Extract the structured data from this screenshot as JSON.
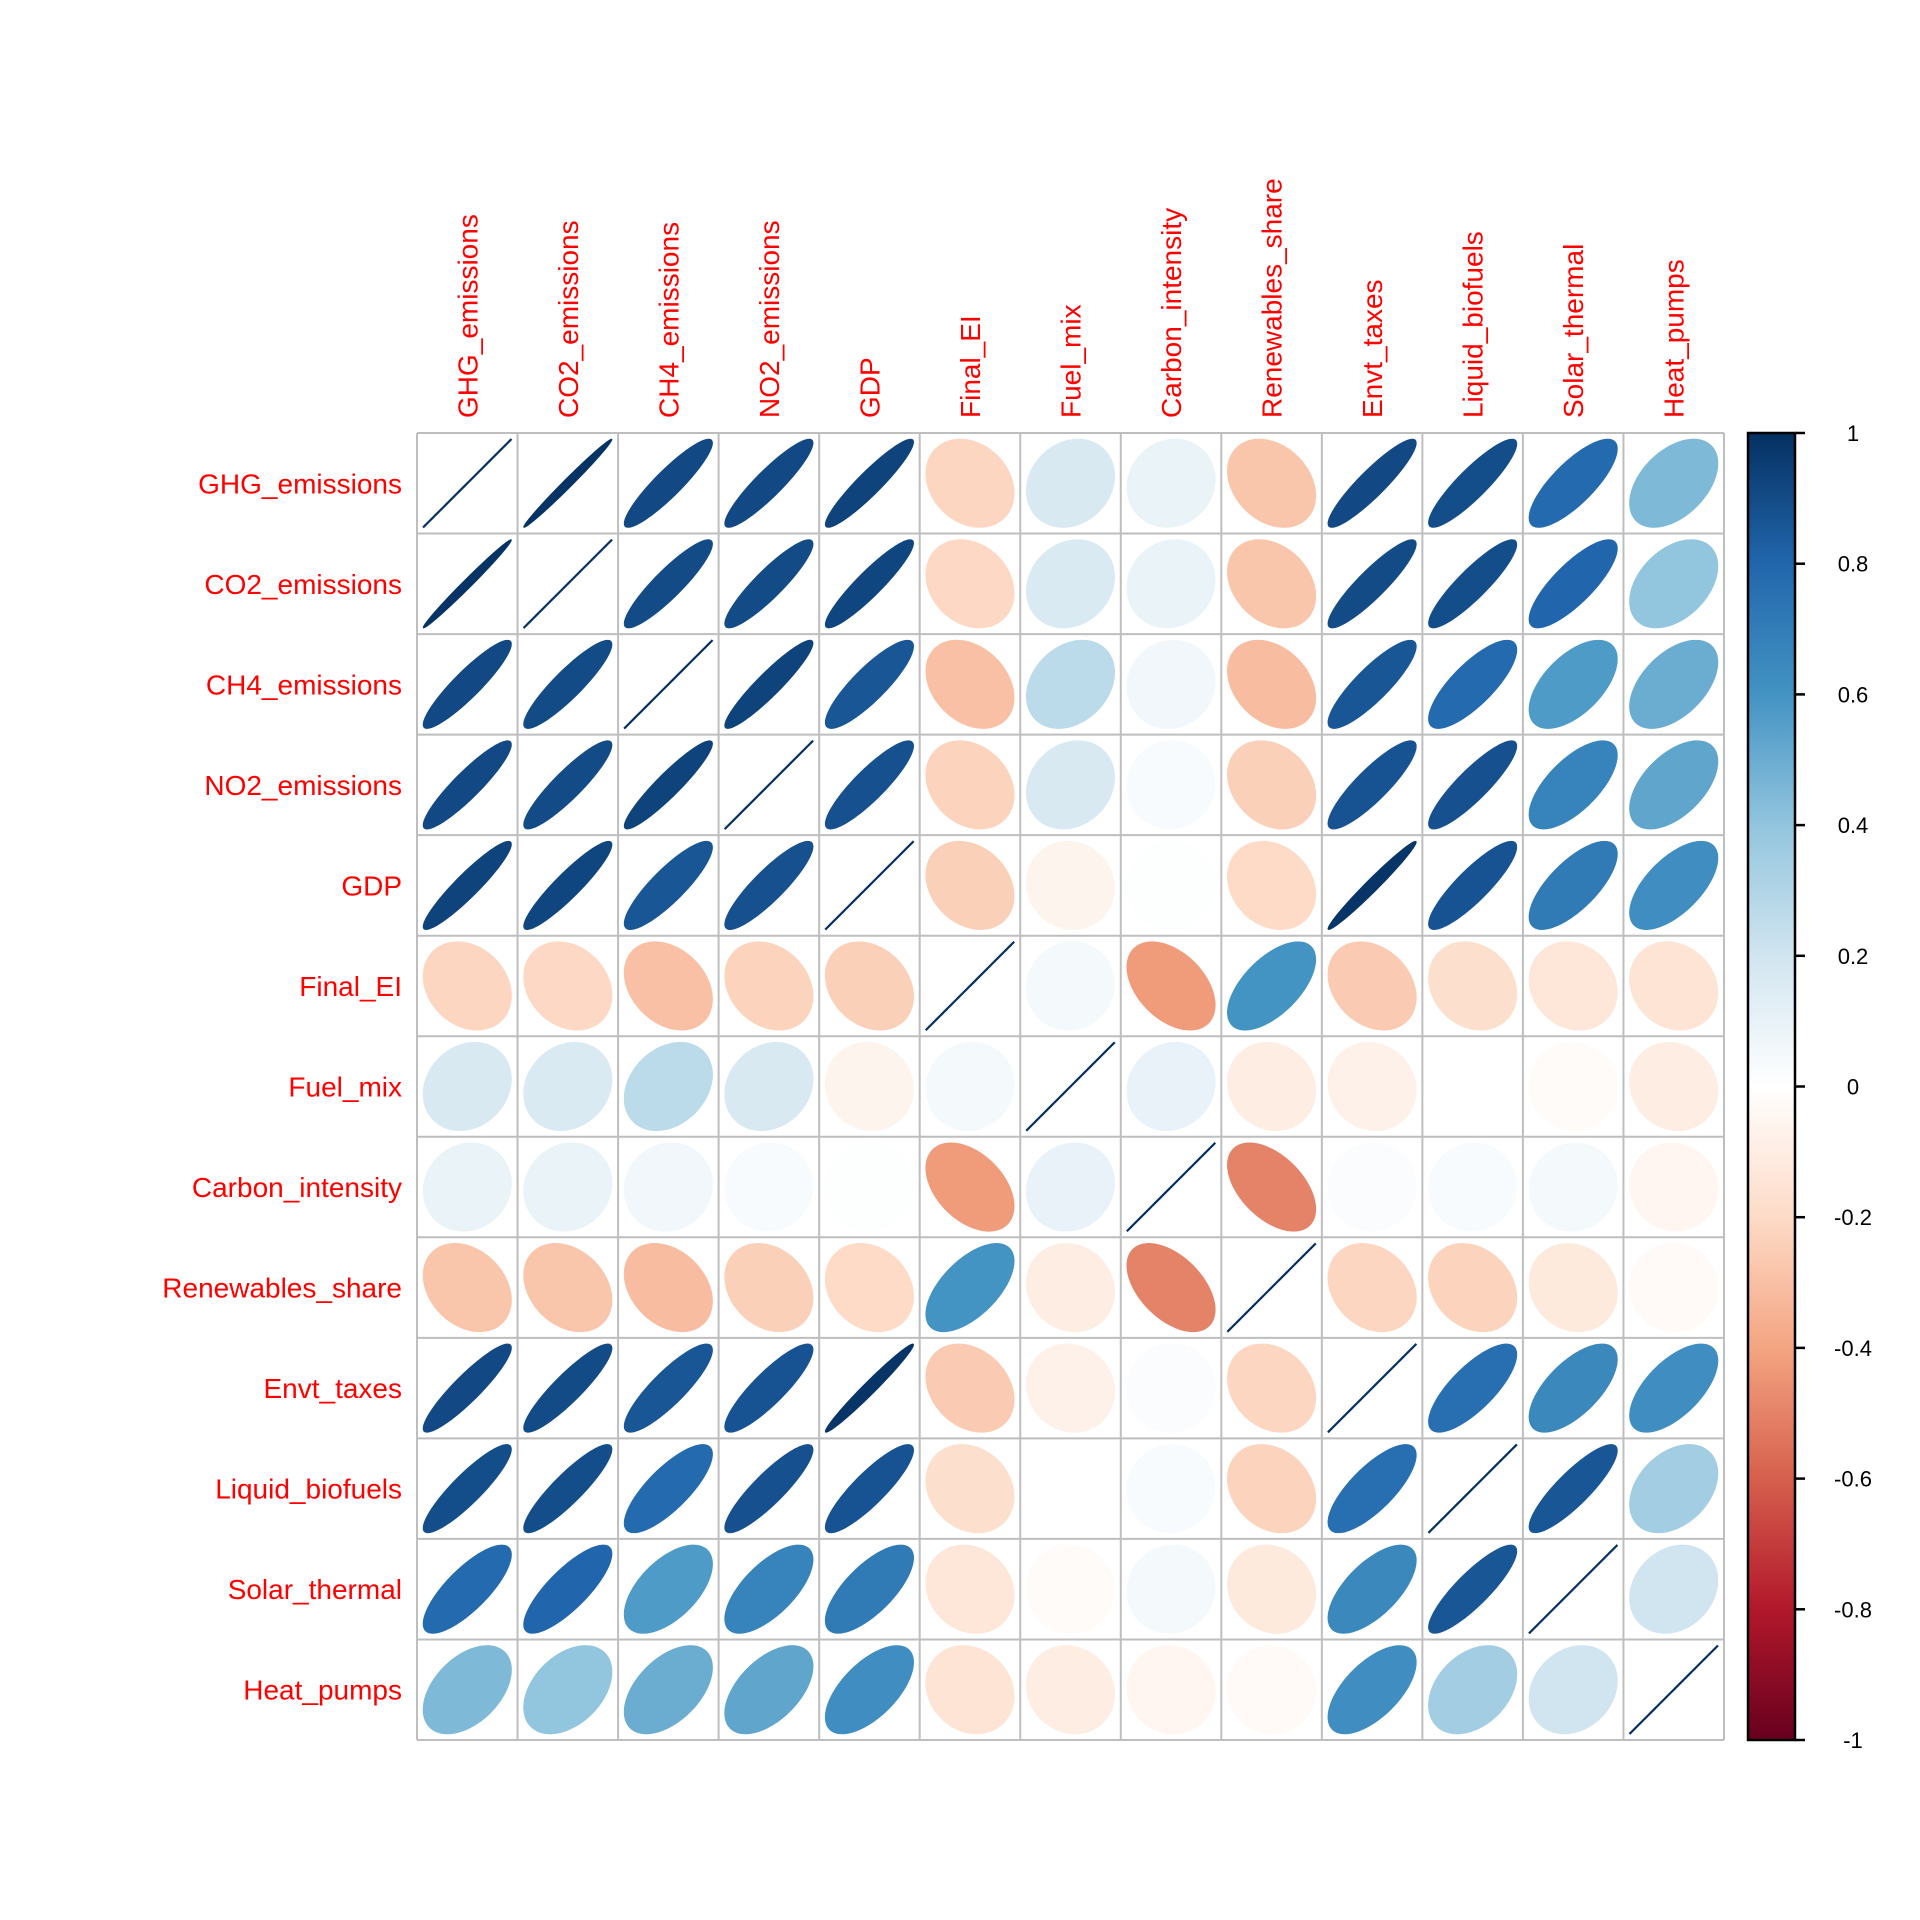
{
  "chart_data": {
    "type": "heatmap",
    "method": "ellipse",
    "title": "",
    "variables": [
      "GHG_emissions",
      "CO2_emissions",
      "CH4_emissions",
      "NO2_emissions",
      "GDP",
      "Final_EI",
      "Fuel_mix",
      "Carbon_intensity",
      "Renewables_share",
      "Envt_taxes",
      "Liquid_biofuels",
      "Solar_thermal",
      "Heat_pumps"
    ],
    "row_labels": [
      "GHG_emissions",
      "CO2_emissions",
      "CH4_emissions",
      "NO2_emissions",
      "GDP",
      "Final_EI",
      "Fuel_mix",
      "Carbon_intensity",
      "Renewables_share",
      "Envt_taxes",
      "Liquid_biofuels",
      "Solar_thermal",
      "Heat_pumps"
    ],
    "col_labels": [
      "GHG_emissions",
      "CO2_emissions",
      "CH4_emissions",
      "NO2_emissions",
      "GDP",
      "Final_EI",
      "Fuel_mix",
      "Carbon_intensity",
      "Renewables_share",
      "Envt_taxes",
      "Liquid_biofuels",
      "Solar_thermal",
      "Heat_pumps"
    ],
    "matrix": [
      [
        1.0,
        0.99,
        0.91,
        0.91,
        0.93,
        -0.22,
        0.17,
        0.09,
        -0.28,
        0.91,
        0.89,
        0.78,
        0.45
      ],
      [
        0.99,
        1.0,
        0.9,
        0.9,
        0.92,
        -0.21,
        0.16,
        0.09,
        -0.28,
        0.9,
        0.89,
        0.8,
        0.4
      ],
      [
        0.91,
        0.9,
        1.0,
        0.93,
        0.86,
        -0.3,
        0.27,
        0.06,
        -0.31,
        0.86,
        0.78,
        0.57,
        0.5
      ],
      [
        0.91,
        0.9,
        0.93,
        1.0,
        0.88,
        -0.23,
        0.17,
        0.03,
        -0.24,
        0.87,
        0.88,
        0.67,
        0.53
      ],
      [
        0.93,
        0.92,
        0.86,
        0.88,
        1.0,
        -0.24,
        -0.06,
        0.01,
        -0.2,
        0.98,
        0.87,
        0.71,
        0.62
      ],
      [
        -0.22,
        -0.21,
        -0.3,
        -0.23,
        -0.24,
        1.0,
        0.05,
        -0.43,
        0.6,
        -0.26,
        -0.18,
        -0.14,
        -0.15
      ],
      [
        0.17,
        0.16,
        0.27,
        0.17,
        -0.06,
        0.05,
        1.0,
        0.1,
        -0.1,
        -0.08,
        0.0,
        -0.02,
        -0.1
      ],
      [
        0.09,
        0.09,
        0.06,
        0.03,
        0.01,
        -0.43,
        0.1,
        1.0,
        -0.5,
        0.02,
        0.03,
        0.05,
        -0.05
      ],
      [
        -0.28,
        -0.28,
        -0.31,
        -0.24,
        -0.2,
        0.6,
        -0.1,
        -0.5,
        1.0,
        -0.22,
        -0.23,
        -0.12,
        -0.03
      ],
      [
        0.91,
        0.9,
        0.86,
        0.87,
        0.98,
        -0.26,
        -0.08,
        0.02,
        -0.22,
        1.0,
        0.76,
        0.65,
        0.62
      ],
      [
        0.89,
        0.89,
        0.78,
        0.88,
        0.87,
        -0.18,
        0.0,
        0.03,
        -0.23,
        0.76,
        1.0,
        0.86,
        0.35
      ],
      [
        0.78,
        0.8,
        0.57,
        0.67,
        0.71,
        -0.14,
        -0.02,
        0.05,
        -0.12,
        0.65,
        0.86,
        1.0,
        0.2
      ],
      [
        0.45,
        0.4,
        0.5,
        0.53,
        0.62,
        -0.15,
        -0.1,
        -0.05,
        -0.03,
        0.62,
        0.35,
        0.2,
        1.0
      ]
    ],
    "colorbar": {
      "range": [
        -1,
        1
      ],
      "ticks": [
        1,
        0.8,
        0.6,
        0.4,
        0.2,
        0,
        -0.2,
        -0.4,
        -0.6,
        -0.8,
        -1
      ],
      "tick_labels": [
        "1",
        "0.8",
        "0.6",
        "0.4",
        "0.2",
        "0",
        "-0.2",
        "-0.4",
        "-0.6",
        "-0.8",
        "-1"
      ],
      "placement": "right",
      "palette": [
        "#67001F",
        "#B2182B",
        "#D6604D",
        "#F4A582",
        "#FDDBC7",
        "#FFFFFF",
        "#D1E5F0",
        "#92C5DE",
        "#4393C3",
        "#2166AC",
        "#053061"
      ]
    },
    "label_color": "#FF0000",
    "grid_color": "#BEBEBE",
    "grid": true,
    "legend": "right"
  }
}
